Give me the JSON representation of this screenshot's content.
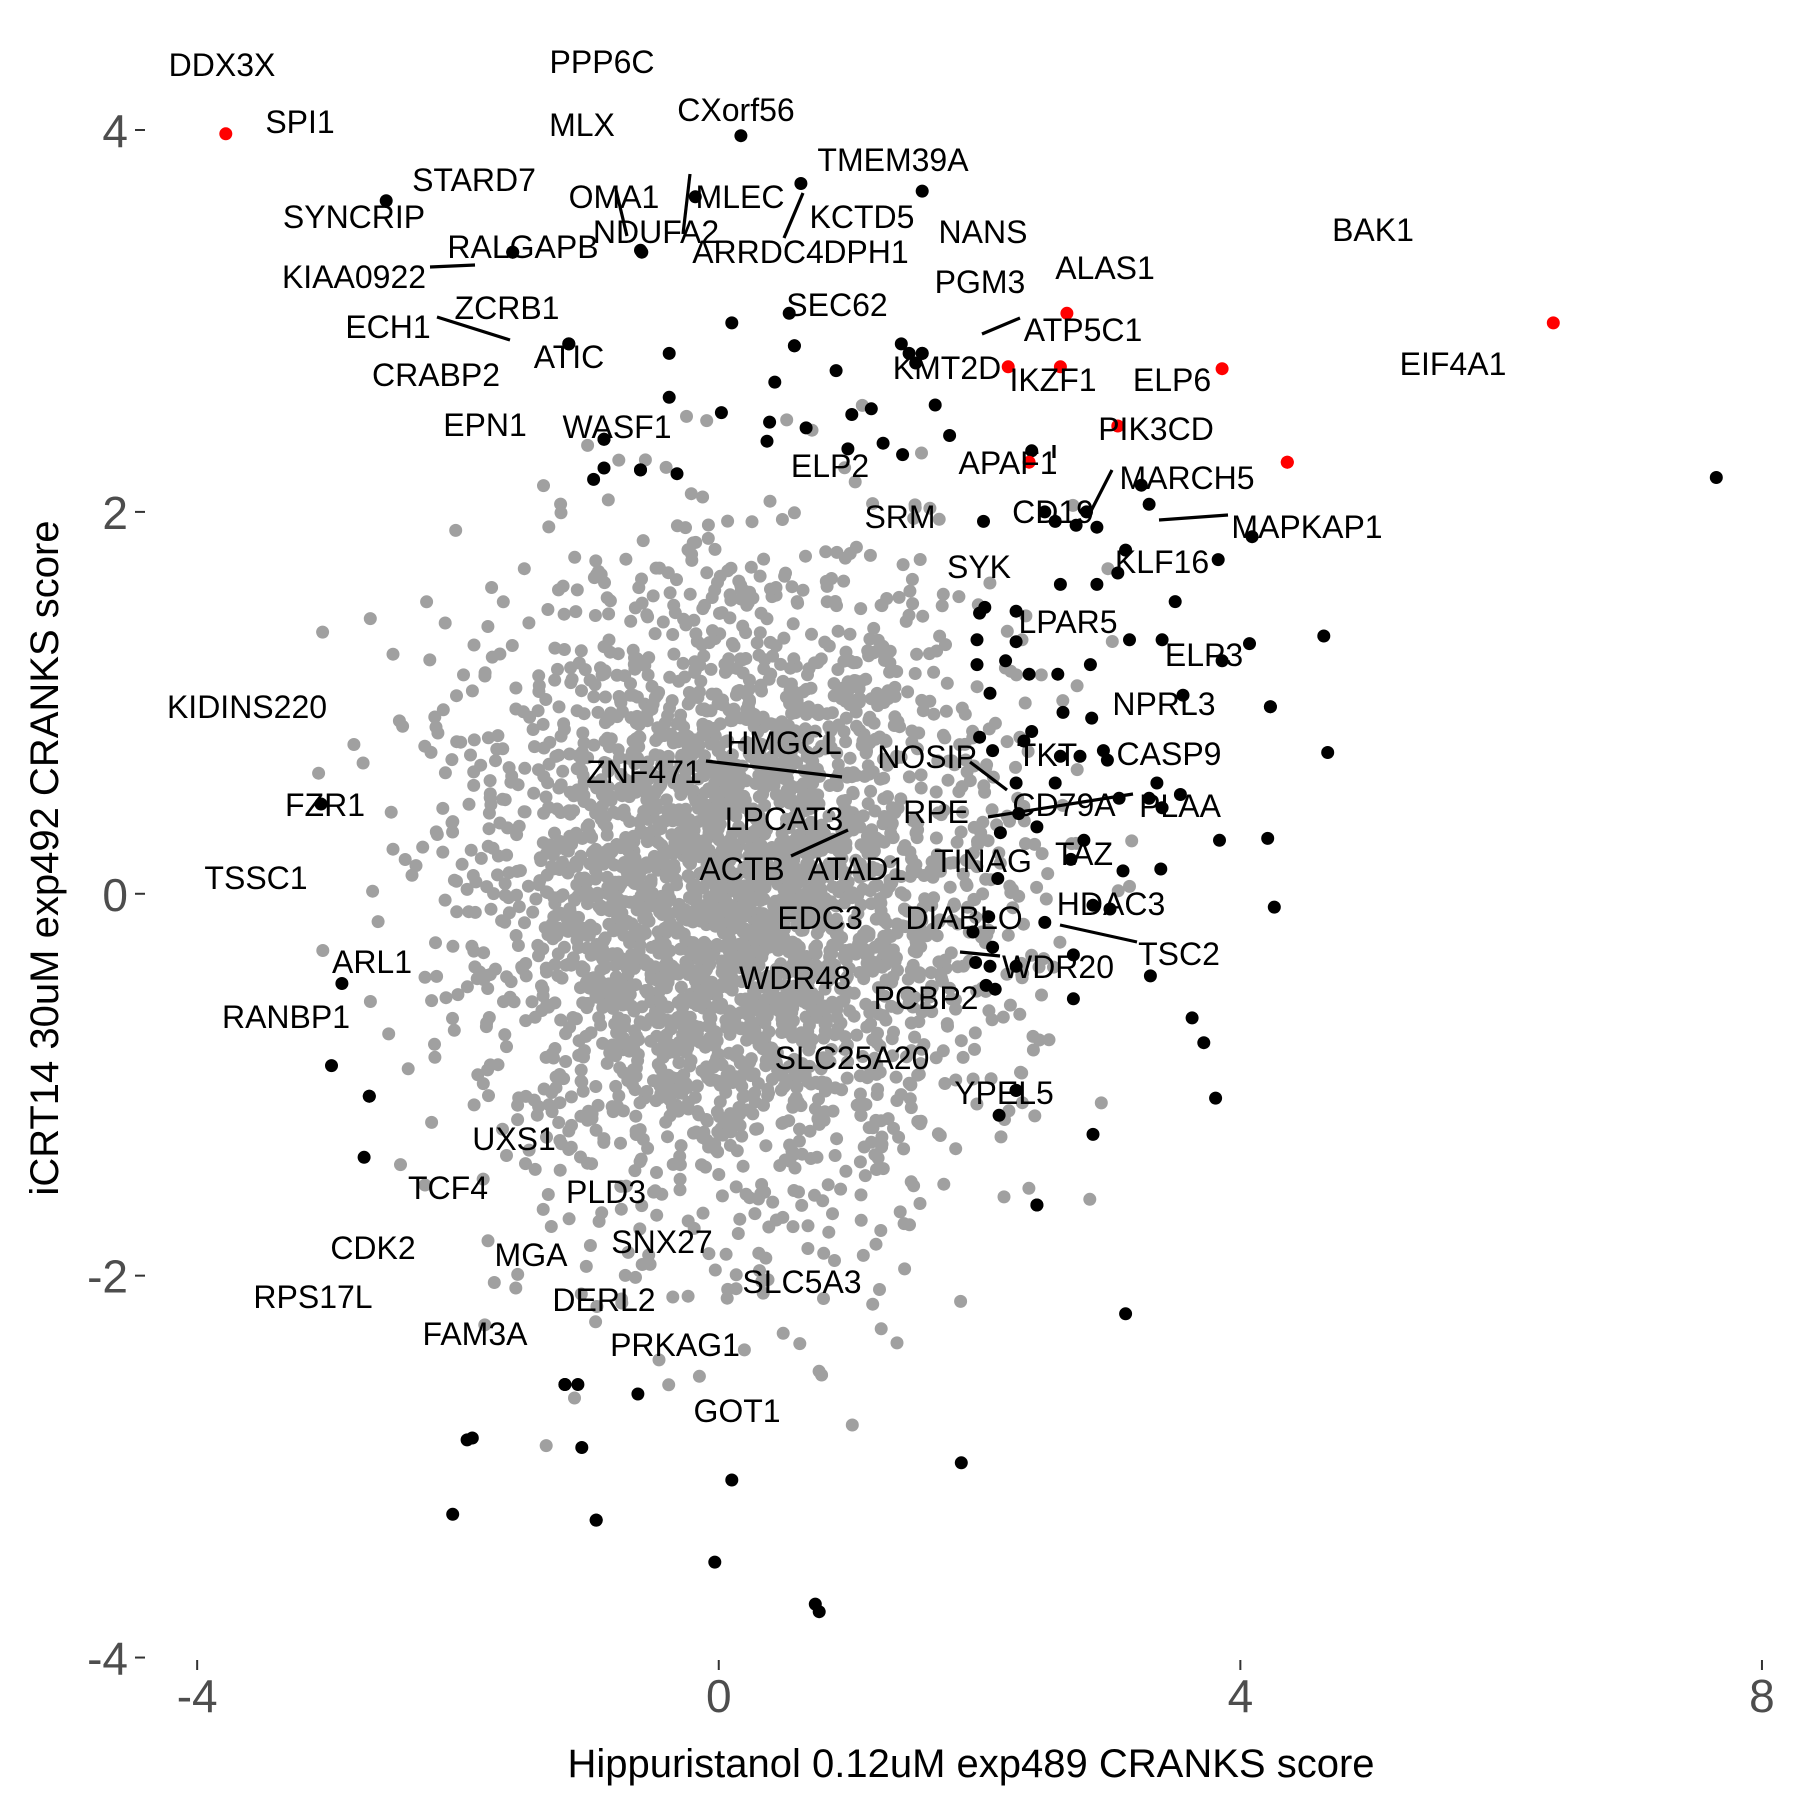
{
  "chart_data": {
    "type": "scatter",
    "xlabel": "Hippuristanol 0.12uM exp489 CRANKS score",
    "ylabel": "iCRT14 30uM exp492 CRANKS score",
    "xlim": [
      -4.4,
      8.1
    ],
    "ylim": [
      -4.17,
      4.22
    ],
    "x_ticks": [
      -4,
      0,
      4,
      8
    ],
    "x_tick_labels": [
      "-4",
      "0",
      "4",
      "8"
    ],
    "y_ticks": [
      -4,
      -2,
      0,
      2,
      4
    ],
    "y_tick_labels": [
      "-4",
      "-2",
      "0",
      "2",
      "4"
    ],
    "grid": false,
    "legend": "none",
    "colors": {
      "background": "#cccccc",
      "highlight": "#ff0000",
      "labeled": "#000000",
      "hit_points": "#000000",
      "text": "#000000",
      "tick_text": "#4d4d4d"
    },
    "background_cloud": {
      "color": "#a0a0a0",
      "count": 3200,
      "center": [
        0.1,
        0.0
      ],
      "sd_x": 1.0,
      "sd_y": 0.85
    },
    "labeled_points": [
      {
        "gene": "DDX3X",
        "x": -3.78,
        "y": 3.98,
        "color": "red"
      },
      {
        "gene": "PPP6C",
        "x": 0.17,
        "y": 3.97,
        "color": "black"
      },
      {
        "gene": "SPI1",
        "x": -2.55,
        "y": 3.63,
        "color": "black"
      },
      {
        "gene": "MLX",
        "x": -0.18,
        "y": 3.65,
        "color": "black"
      },
      {
        "gene": "CXorf56",
        "x": 0.63,
        "y": 3.72,
        "color": "black"
      },
      {
        "gene": "TMEM39A",
        "x": 1.56,
        "y": 3.68,
        "color": "black"
      },
      {
        "gene": "STARD7",
        "x": -1.58,
        "y": 3.36,
        "color": "black"
      },
      {
        "gene": "OMA1",
        "x": -0.6,
        "y": 3.37,
        "color": "black"
      },
      {
        "gene": "SYNCRIP",
        "x": -1.58,
        "y": 3.36,
        "color": "black"
      },
      {
        "gene": "MLEC",
        "x": 0.54,
        "y": 3.04,
        "color": "black"
      },
      {
        "gene": "KCTD5",
        "x": 1.4,
        "y": 2.88,
        "color": "black"
      },
      {
        "gene": "NDUFA2",
        "x": 0.1,
        "y": 2.99,
        "color": "black"
      },
      {
        "gene": "ARRDC4",
        "x": 0.58,
        "y": 2.87,
        "color": "black"
      },
      {
        "gene": "DPH1",
        "x": 1.56,
        "y": 2.83,
        "color": "black"
      },
      {
        "gene": "NANS",
        "x": 2.67,
        "y": 3.04,
        "color": "red"
      },
      {
        "gene": "BAK1",
        "x": 6.4,
        "y": 2.99,
        "color": "red"
      },
      {
        "gene": "RALGAPB",
        "x": -1.15,
        "y": 2.88,
        "color": "black"
      },
      {
        "gene": "KIAA0922",
        "x": -1.15,
        "y": 2.88,
        "color": "black"
      },
      {
        "gene": "PGM3",
        "x": 2.62,
        "y": 2.76,
        "color": "red"
      },
      {
        "gene": "ALAS1",
        "x": 3.86,
        "y": 2.75,
        "color": "red"
      },
      {
        "gene": "SEC62",
        "x": 2.22,
        "y": 2.76,
        "color": "red"
      },
      {
        "gene": "ZCRB1",
        "x": -0.38,
        "y": 2.6,
        "color": "black"
      },
      {
        "gene": "ECH1",
        "x": -0.88,
        "y": 2.38,
        "color": "black"
      },
      {
        "gene": "ATP5C1",
        "x": 3.06,
        "y": 2.45,
        "color": "red"
      },
      {
        "gene": "ATIC",
        "x": -0.88,
        "y": 2.38,
        "color": "black"
      },
      {
        "gene": "CRABP2",
        "x": -0.6,
        "y": 2.22,
        "color": "black"
      },
      {
        "gene": "KMT2D",
        "x": 2.38,
        "y": 2.26,
        "color": "red"
      },
      {
        "gene": "IKZF1",
        "x": 4.36,
        "y": 2.26,
        "color": "red"
      },
      {
        "gene": "ELP6",
        "x": 4.36,
        "y": 2.26,
        "color": "red"
      },
      {
        "gene": "EIF4A1",
        "x": 7.65,
        "y": 2.18,
        "color": "black"
      },
      {
        "gene": "EPN1",
        "x": -0.96,
        "y": 2.17,
        "color": "black"
      },
      {
        "gene": "WASF1",
        "x": -0.32,
        "y": 2.2,
        "color": "black"
      },
      {
        "gene": "PIK3CD",
        "x": 4.09,
        "y": 1.87,
        "color": "black"
      },
      {
        "gene": "APAF1",
        "x": 3.83,
        "y": 1.75,
        "color": "black"
      },
      {
        "gene": "ELP2",
        "x": 2.04,
        "y": 1.5,
        "color": "black"
      },
      {
        "gene": "MARCH5",
        "x": 4.07,
        "y": 1.31,
        "color": "black"
      },
      {
        "gene": "CD19",
        "x": 3.5,
        "y": 1.53,
        "color": "black"
      },
      {
        "gene": "SRM",
        "x": 2.28,
        "y": 1.32,
        "color": "black"
      },
      {
        "gene": "MAPKAP1",
        "x": 4.64,
        "y": 1.35,
        "color": "black"
      },
      {
        "gene": "SYK",
        "x": 3.56,
        "y": 1.04,
        "color": "black"
      },
      {
        "gene": "KLF16",
        "x": 4.23,
        "y": 0.98,
        "color": "black"
      },
      {
        "gene": "LPAR5",
        "x": 4.23,
        "y": 0.98,
        "color": "black"
      },
      {
        "gene": "ELP3",
        "x": 4.67,
        "y": 0.74,
        "color": "black"
      },
      {
        "gene": "KIDINS220",
        "x": -3.05,
        "y": 0.47,
        "color": "black"
      },
      {
        "gene": "NPRL3",
        "x": 4.21,
        "y": 0.29,
        "color": "black"
      },
      {
        "gene": "HMGCL",
        "x": 2.07,
        "y": -0.12,
        "color": "black"
      },
      {
        "gene": "NOSIP",
        "x": 2.87,
        "y": -0.06,
        "color": "black"
      },
      {
        "gene": "TKT",
        "x": 3.84,
        "y": 0.28,
        "color": "black"
      },
      {
        "gene": "CASP9",
        "x": 4.26,
        "y": -0.07,
        "color": "black"
      },
      {
        "gene": "ZNF471",
        "x": 1.95,
        "y": -0.2,
        "color": "black"
      },
      {
        "gene": "CD79A",
        "x": 3.0,
        "y": -0.08,
        "color": "black"
      },
      {
        "gene": "PLAA",
        "x": 3.31,
        "y": -0.43,
        "color": "black"
      },
      {
        "gene": "FZR1",
        "x": -2.89,
        "y": -0.47,
        "color": "black"
      },
      {
        "gene": "LPCAT3",
        "x": 1.97,
        "y": -0.36,
        "color": "black"
      },
      {
        "gene": "RPE",
        "x": 2.08,
        "y": -0.38,
        "color": "black"
      },
      {
        "gene": "TINAG",
        "x": 2.72,
        "y": -0.55,
        "color": "black"
      },
      {
        "gene": "TAZ",
        "x": 3.63,
        "y": -0.65,
        "color": "black"
      },
      {
        "gene": "ACTB",
        "x": 2.05,
        "y": -0.48,
        "color": "black"
      },
      {
        "gene": "ATAD1",
        "x": 2.12,
        "y": -0.5,
        "color": "black"
      },
      {
        "gene": "TSSC1",
        "x": -2.97,
        "y": -0.9,
        "color": "black"
      },
      {
        "gene": "HDAC3",
        "x": 3.72,
        "y": -0.78,
        "color": "black"
      },
      {
        "gene": "EDC3",
        "x": 2.28,
        "y": -1.03,
        "color": "black"
      },
      {
        "gene": "DIABLO",
        "x": 2.28,
        "y": -1.03,
        "color": "black"
      },
      {
        "gene": "TSC2",
        "x": 3.81,
        "y": -1.07,
        "color": "black"
      },
      {
        "gene": "WDR20",
        "x": 2.87,
        "y": -1.26,
        "color": "black"
      },
      {
        "gene": "ARL1",
        "x": -2.68,
        "y": -1.06,
        "color": "black"
      },
      {
        "gene": "WDR48",
        "x": 2.15,
        "y": -1.16,
        "color": "black"
      },
      {
        "gene": "RANBP1",
        "x": -2.72,
        "y": -1.38,
        "color": "black"
      },
      {
        "gene": "PCBP2",
        "x": 2.44,
        "y": -1.63,
        "color": "black"
      },
      {
        "gene": "SLC25A20",
        "x": 2.44,
        "y": -1.63,
        "color": "black"
      },
      {
        "gene": "YPEL5",
        "x": 3.12,
        "y": -2.2,
        "color": "black"
      },
      {
        "gene": "UXS1",
        "x": -1.18,
        "y": -2.57,
        "color": "black"
      },
      {
        "gene": "TCF4",
        "x": -1.18,
        "y": -2.57,
        "color": "black"
      },
      {
        "gene": "PLD3",
        "x": -0.62,
        "y": -2.62,
        "color": "black"
      },
      {
        "gene": "CDK2",
        "x": -1.93,
        "y": -2.86,
        "color": "black"
      },
      {
        "gene": "MGA",
        "x": -1.05,
        "y": -2.9,
        "color": "black"
      },
      {
        "gene": "SNX27",
        "x": 0.1,
        "y": -3.07,
        "color": "black"
      },
      {
        "gene": "SLC5A3",
        "x": 1.86,
        "y": -2.98,
        "color": "black"
      },
      {
        "gene": "RPS17L",
        "x": -2.04,
        "y": -3.25,
        "color": "black"
      },
      {
        "gene": "DERL2",
        "x": -0.94,
        "y": -3.28,
        "color": "black"
      },
      {
        "gene": "FAM3A",
        "x": -0.94,
        "y": -3.28,
        "color": "black"
      },
      {
        "gene": "PRKAG1",
        "x": -0.03,
        "y": -3.5,
        "color": "black"
      },
      {
        "gene": "GOT1",
        "x": 0.77,
        "y": -3.76,
        "color": "black"
      }
    ],
    "hit_points": [
      {
        "x": -1.89,
        "y": -2.85
      },
      {
        "x": -1.08,
        "y": -2.57
      },
      {
        "x": -2.68,
        "y": -1.06
      },
      {
        "x": 0.74,
        "y": -3.72
      },
      {
        "x": -0.59,
        "y": 3.36
      },
      {
        "x": -0.38,
        "y": 2.83
      },
      {
        "x": -0.88,
        "y": 2.23
      },
      {
        "x": -0.6,
        "y": 2.22
      },
      {
        "x": 0.02,
        "y": 2.52
      },
      {
        "x": 0.37,
        "y": 2.37
      },
      {
        "x": 0.39,
        "y": 2.47
      },
      {
        "x": 0.43,
        "y": 2.68
      },
      {
        "x": 0.58,
        "y": 2.87
      },
      {
        "x": 0.9,
        "y": 2.74
      },
      {
        "x": 0.67,
        "y": 2.44
      },
      {
        "x": 0.99,
        "y": 2.33
      },
      {
        "x": 1.02,
        "y": 2.51
      },
      {
        "x": 1.17,
        "y": 2.54
      },
      {
        "x": 1.26,
        "y": 2.36
      },
      {
        "x": 1.41,
        "y": 2.3
      },
      {
        "x": 1.46,
        "y": 2.83
      },
      {
        "x": 1.56,
        "y": 2.83
      },
      {
        "x": 1.51,
        "y": 2.78
      },
      {
        "x": 1.66,
        "y": 2.56
      },
      {
        "x": 1.77,
        "y": 2.4
      },
      {
        "x": 2.03,
        "y": 1.95
      },
      {
        "x": 2.4,
        "y": 2.32
      },
      {
        "x": 2.5,
        "y": 2.0
      },
      {
        "x": 2.58,
        "y": 1.95
      },
      {
        "x": 2.74,
        "y": 1.93
      },
      {
        "x": 2.82,
        "y": 2.0
      },
      {
        "x": 2.9,
        "y": 1.92
      },
      {
        "x": 3.24,
        "y": 2.14
      },
      {
        "x": 3.3,
        "y": 2.04
      },
      {
        "x": 2.62,
        "y": 1.62
      },
      {
        "x": 2.9,
        "y": 1.62
      },
      {
        "x": 3.06,
        "y": 1.68
      },
      {
        "x": 3.12,
        "y": 1.8
      },
      {
        "x": 2.28,
        "y": 1.48
      },
      {
        "x": 2.0,
        "y": 1.47
      },
      {
        "x": 1.98,
        "y": 1.33
      },
      {
        "x": 1.98,
        "y": 1.2
      },
      {
        "x": 2.2,
        "y": 1.22
      },
      {
        "x": 2.38,
        "y": 1.15
      },
      {
        "x": 2.6,
        "y": 1.15
      },
      {
        "x": 2.85,
        "y": 1.2
      },
      {
        "x": 3.15,
        "y": 1.33
      },
      {
        "x": 3.4,
        "y": 1.33
      },
      {
        "x": 3.86,
        "y": 1.22
      },
      {
        "x": 2.08,
        "y": 1.05
      },
      {
        "x": 2.64,
        "y": 0.95
      },
      {
        "x": 2.86,
        "y": 0.92
      },
      {
        "x": 2.0,
        "y": 0.82
      },
      {
        "x": 2.1,
        "y": 0.75
      },
      {
        "x": 2.34,
        "y": 0.8
      },
      {
        "x": 2.4,
        "y": 0.85
      },
      {
        "x": 2.62,
        "y": 0.72
      },
      {
        "x": 2.77,
        "y": 0.72
      },
      {
        "x": 2.95,
        "y": 0.75
      },
      {
        "x": 2.98,
        "y": 0.7
      },
      {
        "x": 2.28,
        "y": 0.58
      },
      {
        "x": 2.58,
        "y": 0.58
      },
      {
        "x": 2.3,
        "y": 0.42
      },
      {
        "x": 2.44,
        "y": 0.35
      },
      {
        "x": 2.16,
        "y": 0.32
      },
      {
        "x": 2.7,
        "y": 0.18
      },
      {
        "x": 2.8,
        "y": 0.28
      },
      {
        "x": 3.07,
        "y": 0.5
      },
      {
        "x": 3.3,
        "y": 0.5
      },
      {
        "x": 3.4,
        "y": 0.45
      },
      {
        "x": 3.54,
        "y": 0.52
      },
      {
        "x": 3.36,
        "y": 0.58
      },
      {
        "x": 3.1,
        "y": 0.12
      },
      {
        "x": 3.39,
        "y": 0.13
      },
      {
        "x": 2.14,
        "y": 0.08
      },
      {
        "x": 2.5,
        "y": -0.15
      },
      {
        "x": 2.72,
        "y": -0.32
      },
      {
        "x": 2.1,
        "y": -0.28
      },
      {
        "x": 2.28,
        "y": -0.38
      }
    ]
  }
}
